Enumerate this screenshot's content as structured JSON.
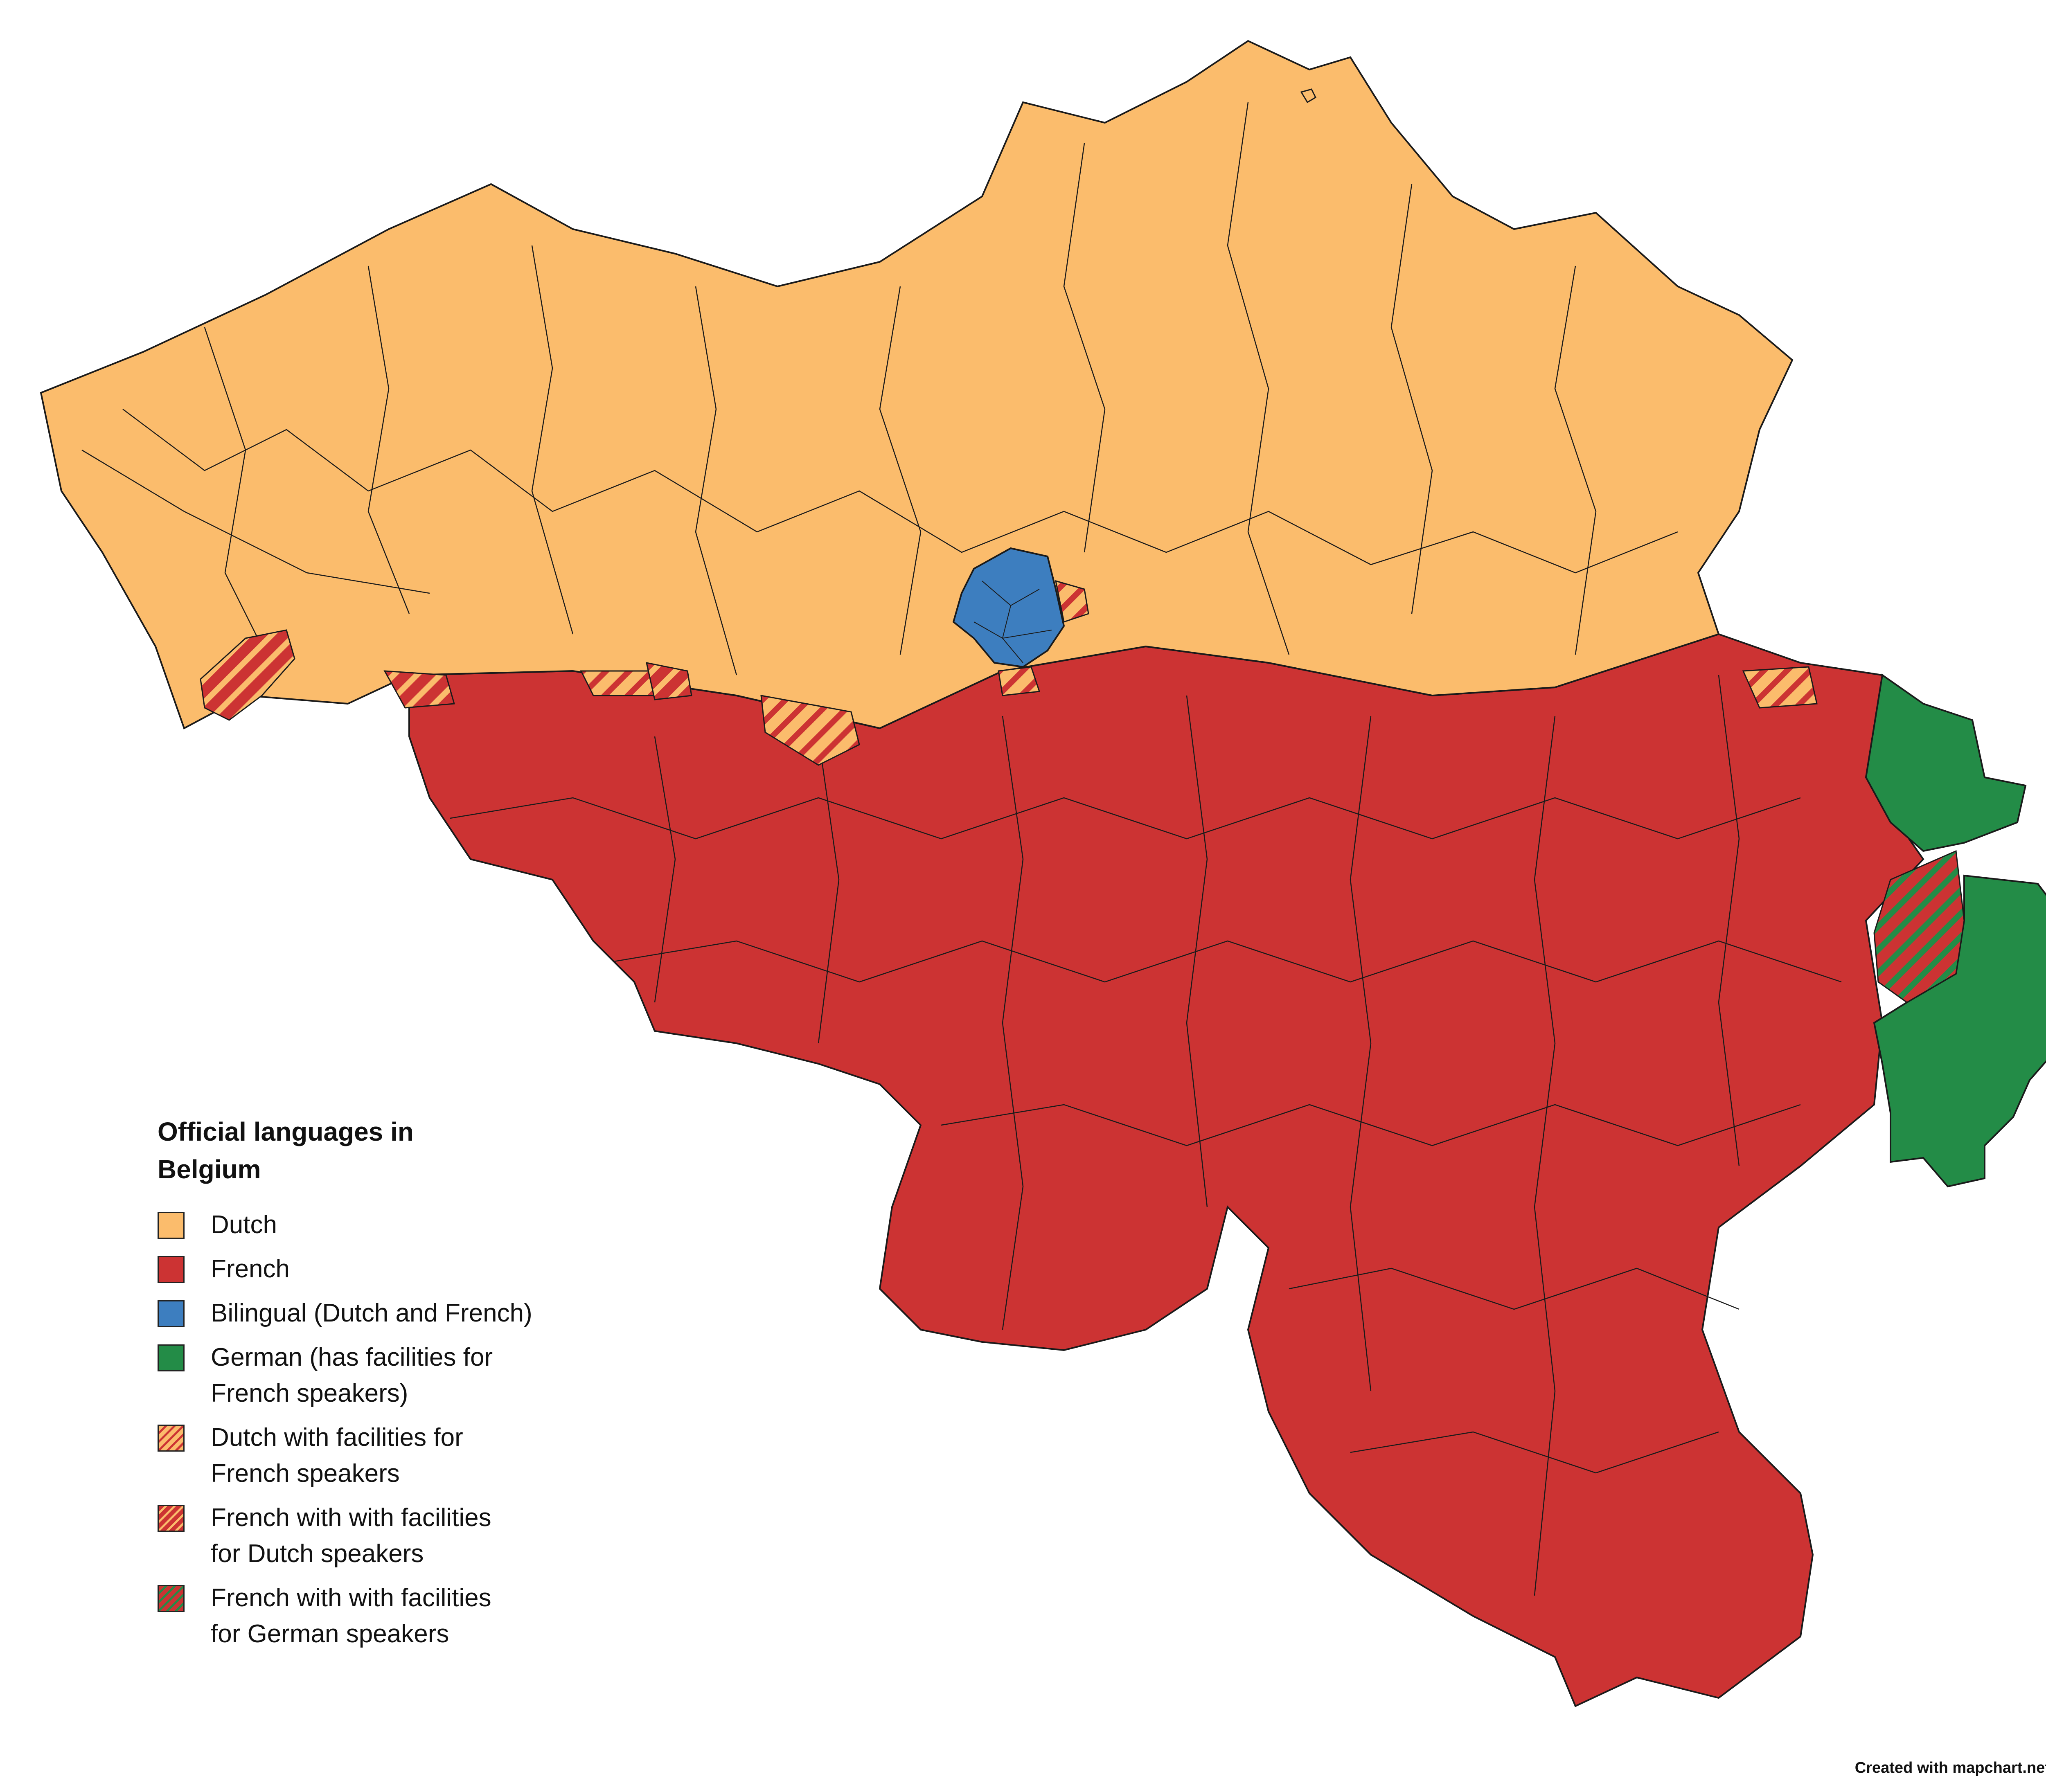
{
  "legend": {
    "title_line1": "Official languages in",
    "title_line2": "Belgium",
    "items": [
      {
        "line1": "Dutch",
        "line2": "",
        "color": "#fbbc6c",
        "pattern": "solid"
      },
      {
        "line1": "French",
        "line2": "",
        "color": "#cc3333",
        "pattern": "solid"
      },
      {
        "line1": "Bilingual (Dutch and French)",
        "line2": "",
        "color": "#3d7ebf",
        "pattern": "solid"
      },
      {
        "line1": "German (has facilities for",
        "line2": "French speakers)",
        "color": "#238c47",
        "pattern": "solid"
      },
      {
        "line1": "Dutch with facilities for",
        "line2": "French speakers",
        "color": "#fbbc6c",
        "stripe": "#cc3333",
        "pattern": "hatched"
      },
      {
        "line1": "French with with facilities",
        "line2": "for Dutch speakers",
        "color": "#cc3333",
        "stripe": "#fbbc6c",
        "pattern": "hatched"
      },
      {
        "line1": "French with with facilities",
        "line2": "for German speakers",
        "color": "#cc3333",
        "stripe": "#238c47",
        "pattern": "hatched"
      }
    ]
  },
  "credit": "Created with mapchart.net",
  "colors": {
    "dutch": "#fbbc6c",
    "french": "#cc3333",
    "bilingual": "#3d7ebf",
    "german": "#238c47",
    "border": "#1a1a1a"
  }
}
